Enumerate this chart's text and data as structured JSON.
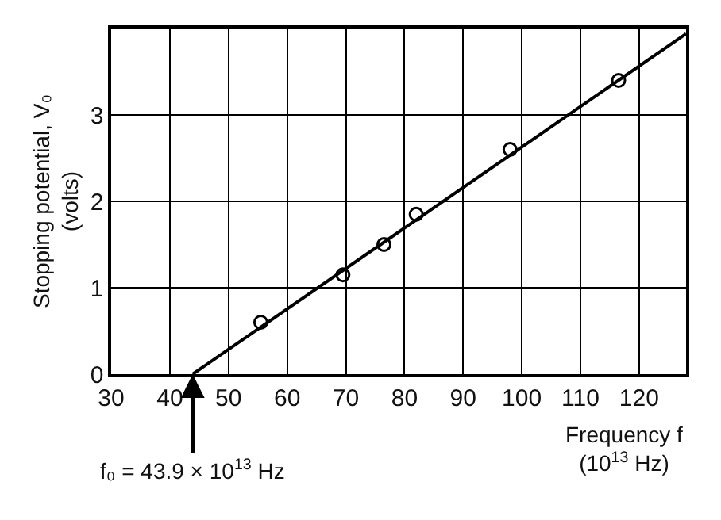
{
  "chart_data": {
    "type": "scatter",
    "xlabel": "Frequency f\n(10$^{13}$ Hz)",
    "ylabel": "Stopping potential, V₀\n(volts)",
    "series": [
      {
        "color": "#000000",
        "marker": "circle",
        "x": [
          55.5,
          69.5,
          76.5,
          82,
          98,
          116.5
        ],
        "values": [
          0.6,
          1.15,
          1.5,
          1.85,
          2.6,
          3.4
        ]
      },
      {
        "type": "line",
        "color": "#000000",
        "x": [
          43.9,
          128
        ],
        "values": [
          0,
          3.94
        ]
      }
    ],
    "xlim": [
      30,
      128
    ],
    "ylim": [
      0,
      4
    ],
    "xticks": [
      30,
      40,
      50,
      60,
      70,
      80,
      90,
      100,
      110,
      120
    ],
    "yticks": [
      0,
      1,
      2,
      3
    ],
    "grid": true,
    "annotations": [
      {
        "text": "f₀ = 43.9 × 10$^{13}$ Hz",
        "x": 43.9,
        "y": 0
      }
    ]
  }
}
